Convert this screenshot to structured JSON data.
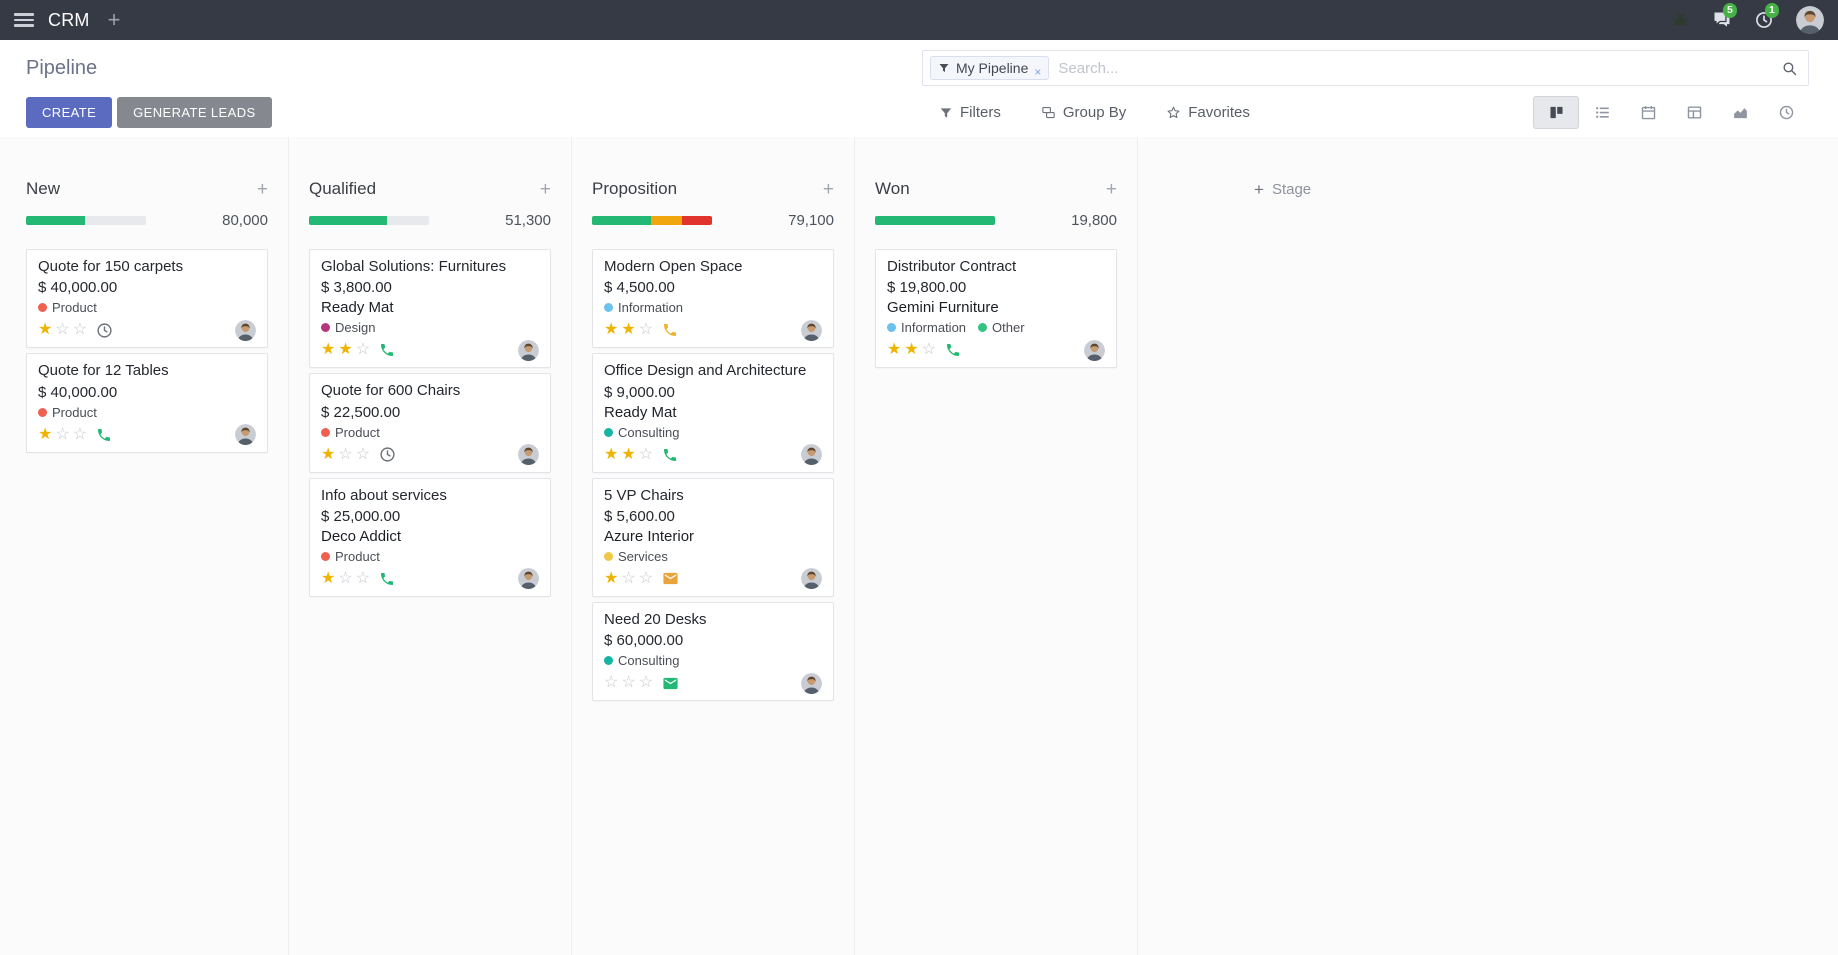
{
  "colors": {
    "topbar_bg": "#353A44",
    "primary_button": "#5B6BC0",
    "secondary_button": "#85888F",
    "progress_green": "#23B873",
    "progress_yellow": "#F2A60D",
    "progress_red": "#E0342C",
    "star_filled": "#EFB400",
    "badge_green": "#44B244"
  },
  "topbar": {
    "app_name": "CRM",
    "systray": {
      "messages_badge": "5",
      "activities_badge": "1"
    }
  },
  "control_panel": {
    "title": "Pipeline",
    "buttons": {
      "create": "CREATE",
      "generate_leads": "GENERATE LEADS"
    },
    "search": {
      "facet": "My Pipeline",
      "facet_remove": "×",
      "placeholder": "Search..."
    },
    "menus": {
      "filters": "Filters",
      "group_by": "Group By",
      "favorites": "Favorites"
    },
    "view_switcher": [
      "kanban",
      "list",
      "calendar",
      "pivot",
      "graph",
      "activity"
    ],
    "active_view": "kanban"
  },
  "board": {
    "add_stage_label": "Stage",
    "stars_max": 3,
    "columns": [
      {
        "name": "New",
        "counter": "80,000",
        "progress": [
          {
            "color": "#23B873",
            "pct": 49
          }
        ],
        "cards": [
          {
            "title": "Quote for 150 carpets",
            "amount": "$ 40,000.00",
            "tags": [
              {
                "label": "Product",
                "color": "#F06050"
              }
            ],
            "stars": 1,
            "activity": {
              "icon": "clock-icon",
              "color": "#6D737C"
            }
          },
          {
            "title": "Quote for 12 Tables",
            "amount": "$ 40,000.00",
            "tags": [
              {
                "label": "Product",
                "color": "#F06050"
              }
            ],
            "stars": 1,
            "activity": {
              "icon": "phone-icon",
              "color": "#23B873"
            }
          }
        ]
      },
      {
        "name": "Qualified",
        "counter": "51,300",
        "progress": [
          {
            "color": "#23B873",
            "pct": 65
          }
        ],
        "cards": [
          {
            "title": "Global Solutions: Furnitures",
            "amount": "$ 3,800.00",
            "partner": "Ready Mat",
            "tags": [
              {
                "label": "Design",
                "color": "#B5367D"
              }
            ],
            "stars": 2,
            "activity": {
              "icon": "phone-icon",
              "color": "#23B873"
            }
          },
          {
            "title": "Quote for 600 Chairs",
            "amount": "$ 22,500.00",
            "tags": [
              {
                "label": "Product",
                "color": "#F06050"
              }
            ],
            "stars": 1,
            "activity": {
              "icon": "clock-icon",
              "color": "#6D737C"
            }
          },
          {
            "title": "Info about services",
            "amount": "$ 25,000.00",
            "partner": "Deco Addict",
            "tags": [
              {
                "label": "Product",
                "color": "#F06050"
              }
            ],
            "stars": 1,
            "activity": {
              "icon": "phone-icon",
              "color": "#23B873"
            }
          }
        ]
      },
      {
        "name": "Proposition",
        "counter": "79,100",
        "progress": [
          {
            "color": "#23B873",
            "pct": 49
          },
          {
            "color": "#F2A60D",
            "pct": 26
          },
          {
            "color": "#E0342C",
            "pct": 25
          }
        ],
        "cards": [
          {
            "title": "Modern Open Space",
            "amount": "$ 4,500.00",
            "tags": [
              {
                "label": "Information",
                "color": "#6CC1ED"
              }
            ],
            "stars": 2,
            "activity": {
              "icon": "phone-icon",
              "color": "#F0B232"
            }
          },
          {
            "title": "Office Design and Architecture",
            "amount": "$ 9,000.00",
            "partner": "Ready Mat",
            "tags": [
              {
                "label": "Consulting",
                "color": "#17B3A3"
              }
            ],
            "stars": 2,
            "activity": {
              "icon": "phone-icon",
              "color": "#23B873"
            }
          },
          {
            "title": "5 VP Chairs",
            "amount": "$ 5,600.00",
            "partner": "Azure Interior",
            "tags": [
              {
                "label": "Services",
                "color": "#F0C747"
              }
            ],
            "stars": 1,
            "activity": {
              "icon": "envelope-icon",
              "color": "#E9A43B"
            }
          },
          {
            "title": "Need 20 Desks",
            "amount": "$ 60,000.00",
            "tags": [
              {
                "label": "Consulting",
                "color": "#17B3A3"
              }
            ],
            "stars": 0,
            "activity": {
              "icon": "envelope-icon",
              "color": "#23B873"
            }
          }
        ]
      },
      {
        "name": "Won",
        "counter": "19,800",
        "progress": [
          {
            "color": "#23B873",
            "pct": 100
          }
        ],
        "cards": [
          {
            "title": "Distributor Contract",
            "amount": "$ 19,800.00",
            "partner": "Gemini Furniture",
            "tags": [
              {
                "label": "Information",
                "color": "#6CC1ED"
              },
              {
                "label": "Other",
                "color": "#30C381"
              }
            ],
            "stars": 2,
            "activity": {
              "icon": "phone-icon",
              "color": "#23B873"
            }
          }
        ]
      }
    ]
  }
}
